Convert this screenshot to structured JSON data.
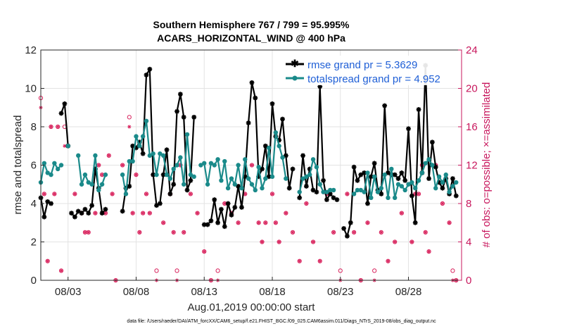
{
  "chart_data": {
    "type": "line",
    "title": "Southern Hemisphere 767 / 799 = 95.995%",
    "subtitle": "ACARS_HORIZONTAL_WIND @ 400 hPa",
    "xlabel": "Aug.01,2019 00:00:00 start",
    "ylabel_left": "rmse and totalspread",
    "ylabel_right": "# of obs: o=possible; ×=assimilated",
    "footer": "data file: /Users/raeder/DAI/ATM_forcXX/CAM6_setup/f.e21.FHIST_BGC.f09_025.CAM6assim.011/Diags_NTrS_2019-08/obs_diag_output.nc",
    "x_unit": "day of August 2019 (fractional)",
    "xlim": [
      1.0,
      31.9
    ],
    "ylim_left": [
      0,
      12
    ],
    "ylim_right": [
      0,
      24
    ],
    "yticks_left": [
      0,
      2,
      4,
      6,
      8,
      10,
      12
    ],
    "yticks_right": [
      0,
      4,
      8,
      12,
      16,
      20,
      24
    ],
    "xticks": [
      {
        "x": 3.0,
        "label": "08/03"
      },
      {
        "x": 8.0,
        "label": "08/08"
      },
      {
        "x": 13.0,
        "label": "08/13"
      },
      {
        "x": 18.0,
        "label": "08/18"
      },
      {
        "x": 23.0,
        "label": "08/23"
      },
      {
        "x": 28.0,
        "label": "08/28"
      }
    ],
    "grid": true,
    "legend_position": "top-right",
    "series": [
      {
        "name": "rmse grand pr = 5.3629",
        "color": "#000000",
        "marker": "star",
        "segments": [
          {
            "x": [
              1.0,
              1.25,
              1.5,
              1.75
            ],
            "y": [
              4.3,
              3.3,
              4.1,
              4.0
            ]
          },
          {
            "x": [
              2.5,
              2.75,
              3.0
            ],
            "y": [
              8.7,
              9.2,
              7.0
            ]
          },
          {
            "x": [
              3.25,
              3.5,
              3.75,
              4.0,
              4.25,
              4.5,
              4.75,
              5.0,
              5.25,
              5.5,
              5.75
            ],
            "y": [
              3.5,
              3.3,
              3.6,
              3.5,
              3.7,
              3.5,
              3.9,
              5.8,
              4.8,
              3.5,
              3.7
            ]
          },
          {
            "x": [
              7.0,
              7.25,
              7.5,
              7.75,
              8.0,
              8.25,
              8.5,
              8.75,
              9.0,
              9.25,
              9.5,
              9.75,
              10.0,
              10.25,
              10.5,
              10.75,
              11.0,
              11.25,
              11.5,
              11.75,
              12.0,
              12.25
            ],
            "y": [
              3.6,
              4.8,
              4.9,
              7.0,
              6.9,
              7.2,
              6.6,
              10.7,
              11.0,
              5.5,
              3.9,
              4.0,
              5.5,
              6.8,
              4.5,
              5.0,
              8.8,
              9.7,
              8.5,
              4.7,
              5.2,
              8.5
            ]
          },
          {
            "x": [
              13.0,
              13.25,
              13.5,
              13.75,
              14.0,
              14.25,
              14.5,
              14.75,
              15.0,
              15.25,
              15.5,
              15.75,
              16.0,
              16.25,
              16.5,
              16.75,
              17.0,
              17.25,
              17.5,
              17.75,
              18.0,
              18.25,
              18.5,
              18.75,
              19.0,
              19.25,
              19.5
            ],
            "y": [
              2.9,
              2.9,
              3.1,
              4.2,
              3.0,
              3.7,
              2.8,
              4.0,
              3.4,
              3.8,
              4.9,
              3.8,
              5.4,
              8.2,
              10.3,
              9.5,
              5.4,
              5.8,
              7.0,
              5.4,
              9.2,
              7.5,
              7.3,
              8.4,
              6.5,
              4.8,
              5.8
            ]
          },
          {
            "x": [
              20.0,
              20.25,
              20.5,
              20.75,
              21.0,
              21.25,
              21.5,
              21.75,
              22.0,
              22.25,
              22.5,
              22.75
            ],
            "y": [
              4.3,
              6.5,
              4.9,
              5.8,
              4.7,
              4.6,
              10.1,
              5.2,
              4.2,
              4.5,
              4.3,
              4.2
            ]
          },
          {
            "x": [
              23.25,
              23.5,
              23.75,
              24.0,
              24.25,
              24.5,
              24.75,
              25.0,
              25.25,
              25.5,
              25.75,
              26.0,
              26.25,
              26.5,
              26.75,
              27.0,
              27.25,
              27.5,
              27.75,
              28.0,
              28.25,
              28.5,
              28.75,
              29.0,
              29.25,
              29.5,
              29.75,
              30.0,
              30.25,
              30.5,
              30.75,
              31.0,
              31.25,
              31.5
            ],
            "y": [
              2.7,
              2.3,
              3.0,
              5.9,
              5.2,
              5.5,
              5.6,
              4.0,
              5.4,
              6.1,
              4.7,
              4.5,
              9.1,
              5.6,
              5.5,
              5.5,
              5.3,
              5.6,
              5.2,
              7.9,
              4.4,
              3.0,
              8.9,
              5.6,
              11.2,
              5.3,
              7.2,
              5.9,
              5.1,
              4.8,
              5.3,
              4.5,
              5.3,
              4.4
            ]
          }
        ]
      },
      {
        "name": "totalspread grand pr = 4.952",
        "color": "#1a8a8a",
        "marker": "circle",
        "segments": [
          {
            "x": [
              1.0,
              1.25,
              1.5,
              1.75,
              2.0,
              2.25,
              2.5
            ],
            "y": [
              5.1,
              6.1,
              5.6,
              5.5,
              6.1,
              5.8,
              6.0
            ]
          },
          {
            "x": [
              3.0
            ],
            "y": [
              7.0
            ]
          },
          {
            "x": [
              3.75,
              4.0,
              4.25,
              4.5,
              4.75,
              5.0,
              5.25,
              5.5,
              5.75
            ],
            "y": [
              6.5,
              5.0,
              5.5,
              5.1,
              5.0,
              6.5,
              4.7,
              5.0,
              5.5
            ]
          },
          {
            "x": [
              7.0,
              7.25,
              7.5,
              7.75,
              8.0,
              8.25,
              8.5,
              8.75,
              9.0,
              9.25,
              9.5,
              9.75,
              10.0,
              10.25,
              10.5,
              10.75,
              11.0,
              11.25,
              11.5,
              11.75,
              12.0,
              12.25
            ],
            "y": [
              5.5,
              4.5,
              6.2,
              6.2,
              7.5,
              7.0,
              7.5,
              8.3,
              6.5,
              6.6,
              5.5,
              6.6,
              6.5,
              5.5,
              5.3,
              5.8,
              6.0,
              6.4,
              5.0,
              7.6,
              5.5,
              5.4
            ]
          },
          {
            "x": [
              12.75,
              13.0,
              13.25,
              13.5,
              13.75,
              14.0,
              14.25,
              14.5,
              14.75,
              15.0,
              15.25,
              15.5,
              15.75,
              16.0,
              16.25,
              16.5,
              16.75,
              17.0,
              17.25,
              17.5,
              17.75,
              18.0,
              18.25,
              18.5,
              18.75,
              19.0
            ],
            "y": [
              6.0,
              6.1,
              5.0,
              6.1,
              6.0,
              6.3,
              5.2,
              6.2,
              4.8,
              5.3,
              5.0,
              6.0,
              4.8,
              6.3,
              5.3,
              5.0,
              4.7,
              5.9,
              4.8,
              5.3,
              6.9,
              5.4,
              7.7,
              7.0,
              6.4,
              5.3
            ]
          },
          {
            "x": [
              20.0,
              20.25,
              20.5,
              20.75,
              21.0,
              21.25,
              21.5,
              21.75,
              22.0,
              22.25,
              22.5
            ],
            "y": [
              4.6,
              5.3,
              5.4,
              5.5,
              6.3,
              5.9,
              5.0,
              4.6,
              4.6,
              4.7,
              4.7
            ]
          },
          {
            "x": [
              24.0,
              24.25,
              24.5,
              24.75,
              25.0,
              25.25,
              25.5,
              25.75,
              26.0,
              26.25,
              26.5,
              26.75,
              27.0,
              27.25,
              27.5,
              27.75,
              28.0,
              28.25,
              28.5,
              28.75,
              29.0,
              29.25,
              29.5,
              29.75,
              30.0,
              30.25,
              30.5,
              30.75,
              31.0,
              31.25,
              31.5
            ],
            "y": [
              4.5,
              4.7,
              4.7,
              4.6,
              5.6,
              4.3,
              5.4,
              4.6,
              4.8,
              5.5,
              4.3,
              5.8,
              4.3,
              5.0,
              4.9,
              4.7,
              5.0,
              5.1,
              4.8,
              5.2,
              5.6,
              6.1,
              6.3,
              6.0,
              4.8,
              5.4,
              5.1,
              5.5,
              4.6,
              4.9,
              5.1
            ]
          }
        ]
      }
    ],
    "obs_series": [
      {
        "name": "possible",
        "axis": "right",
        "marker": "o",
        "color": "#d9245e",
        "x": [
          1.0,
          1.25,
          1.5,
          1.75,
          2.0,
          2.25,
          2.5,
          2.75,
          3.0,
          3.5,
          4.0,
          4.25,
          4.5,
          5.0,
          5.25,
          5.5,
          5.75,
          6.0,
          6.25,
          6.5,
          7.0,
          7.25,
          7.5,
          7.75,
          8.0,
          8.25,
          8.5,
          8.75,
          9.0,
          9.25,
          9.5,
          10.0,
          10.5,
          10.75,
          11.0,
          11.25,
          11.5,
          12.0,
          12.5,
          13.0,
          13.5,
          14.0,
          14.5,
          15.0,
          15.5,
          16.0,
          16.5,
          17.0,
          17.25,
          17.5,
          18.0,
          18.25,
          18.5,
          19.0,
          19.5,
          20.0,
          20.5,
          21.0,
          21.5,
          22.0,
          22.5,
          23.0,
          23.5,
          24.0,
          24.5,
          25.0,
          25.5,
          26.0,
          26.5,
          27.0,
          27.5,
          28.0,
          28.25,
          28.5,
          28.75,
          29.0,
          29.25,
          29.5,
          30.0,
          30.5,
          31.0,
          31.25,
          31.5
        ],
        "y": [
          19,
          9,
          2,
          16,
          9,
          16,
          1,
          16,
          14,
          9,
          7,
          5,
          5,
          7,
          12,
          11,
          7,
          13,
          9,
          0,
          12,
          9,
          17,
          7,
          11,
          5,
          7,
          9,
          7,
          11,
          1,
          6,
          9,
          5,
          1,
          12,
          5,
          9,
          7,
          3,
          0,
          1,
          8,
          7,
          6,
          9,
          12,
          6,
          4,
          6,
          9,
          6,
          4,
          7,
          5,
          2,
          8,
          4,
          2,
          9,
          5,
          1,
          9,
          5,
          0,
          6,
          1,
          5,
          2,
          4,
          7,
          10,
          4,
          9,
          9,
          12,
          5,
          3,
          12,
          8,
          6,
          1,
          0
        ]
      },
      {
        "name": "assimilated",
        "axis": "right",
        "marker": "asterisk",
        "color": "#d9245e",
        "x": [
          1.0,
          1.25,
          1.5,
          1.75,
          2.0,
          2.25,
          2.5,
          2.75,
          3.0,
          3.5,
          4.0,
          4.25,
          4.5,
          5.0,
          5.25,
          5.5,
          5.75,
          6.0,
          6.25,
          6.5,
          7.0,
          7.25,
          7.5,
          7.75,
          8.0,
          8.25,
          8.5,
          8.75,
          9.0,
          9.25,
          9.5,
          10.0,
          10.5,
          10.75,
          11.0,
          11.25,
          11.5,
          12.0,
          12.5,
          13.0,
          13.5,
          14.0,
          14.5,
          15.0,
          15.5,
          16.0,
          16.5,
          17.0,
          17.25,
          17.5,
          18.0,
          18.25,
          18.5,
          19.0,
          19.5,
          20.0,
          20.5,
          21.0,
          21.5,
          22.0,
          22.5,
          23.0,
          23.5,
          24.0,
          24.5,
          25.0,
          25.5,
          26.0,
          26.5,
          27.0,
          27.5,
          28.0,
          28.25,
          28.5,
          28.75,
          29.0,
          29.25,
          29.5,
          30.0,
          30.5,
          31.0,
          31.25,
          31.5
        ],
        "y": [
          18,
          9,
          2,
          16,
          9,
          16,
          1,
          14,
          14,
          9,
          7,
          5,
          5,
          7,
          12,
          11,
          7,
          13,
          9,
          0,
          12,
          9,
          16,
          7,
          11,
          5,
          7,
          9,
          7,
          11,
          0,
          6,
          9,
          5,
          0,
          12,
          5,
          9,
          7,
          3,
          0,
          0,
          8,
          7,
          6,
          9,
          12,
          6,
          4,
          6,
          9,
          6,
          4,
          7,
          5,
          2,
          8,
          4,
          2,
          9,
          5,
          0,
          9,
          5,
          0,
          6,
          0,
          5,
          2,
          4,
          7,
          10,
          4,
          9,
          9,
          12,
          5,
          3,
          12,
          8,
          6,
          0,
          0
        ]
      }
    ]
  }
}
